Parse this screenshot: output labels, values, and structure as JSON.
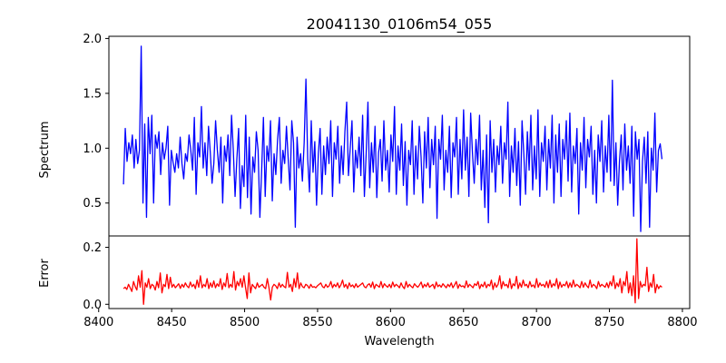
{
  "chart_data": [
    {
      "type": "line",
      "title": "20041130_0106m54_055",
      "xlabel": "",
      "ylabel": "Spectrum",
      "xlim": [
        8407,
        8805
      ],
      "ylim": [
        0.2,
        2.02
      ],
      "yticks": [
        0.5,
        1.0,
        1.5,
        2.0
      ],
      "ytick_labels": [
        "0.5",
        "1.0",
        "1.5",
        "2.0"
      ],
      "color": "#0000ff",
      "x_start": 8417,
      "x_end": 8786,
      "series": [
        {
          "values": [
            0.67,
            1.18,
            0.88,
            1.05,
            0.95,
            1.12,
            0.82,
            1.08,
            0.86,
            0.98,
            1.93,
            0.5,
            1.22,
            0.37,
            1.28,
            0.95,
            1.3,
            0.5,
            1.12,
            1.0,
            1.15,
            0.76,
            1.05,
            0.9,
            1.0,
            1.2,
            0.48,
            0.98,
            0.87,
            0.78,
            0.95,
            0.82,
            1.1,
            0.86,
            0.72,
            0.95,
            0.88,
            1.12,
            0.98,
            0.8,
            1.28,
            0.58,
            1.05,
            0.92,
            1.38,
            0.82,
            1.05,
            0.75,
            1.2,
            0.96,
            0.68,
            0.86,
            1.25,
            0.98,
            0.78,
            1.1,
            0.5,
            1.02,
            0.88,
            1.12,
            0.75,
            1.3,
            0.98,
            0.56,
            0.9,
            1.18,
            0.45,
            0.84,
            0.65,
            1.3,
            0.55,
            1.1,
            0.4,
            0.92,
            0.78,
            1.15,
            0.98,
            0.37,
            0.8,
            1.28,
            0.56,
            1.02,
            0.88,
            1.25,
            0.52,
            0.95,
            0.76,
            1.08,
            1.28,
            0.68,
            0.98,
            0.86,
            1.2,
            0.9,
            0.62,
            1.25,
            1.05,
            0.28,
            1.1,
            0.82,
            0.95,
            0.7,
            1.05,
            1.63,
            0.9,
            0.6,
            1.25,
            0.78,
            1.06,
            0.48,
            0.95,
            1.18,
            0.58,
            1.02,
            0.76,
            1.1,
            0.86,
            1.25,
            0.56,
            1.05,
            0.9,
            1.2,
            0.68,
            1.02,
            0.76,
            1.15,
            1.42,
            0.75,
            1.0,
            1.25,
            0.6,
            0.98,
            0.82,
            1.1,
            0.75,
            1.3,
            0.56,
            0.95,
            1.42,
            0.64,
            1.05,
            0.78,
            1.2,
            0.55,
            0.96,
            1.08,
            0.7,
            1.25,
            0.8,
            0.98,
            0.6,
            1.12,
            0.88,
            1.38,
            0.58,
            1.02,
            0.8,
            1.22,
            0.66,
            1.06,
            0.48,
            0.98,
            0.85,
            1.25,
            0.58,
            1.02,
            0.72,
            1.2,
            0.92,
            0.5,
            1.15,
            0.82,
            1.28,
            0.64,
            1.08,
            0.85,
            1.2,
            0.36,
            1.08,
            0.9,
            1.3,
            0.62,
            0.98,
            0.78,
            1.2,
            0.55,
            1.05,
            0.92,
            1.28,
            0.58,
            1.08,
            0.72,
            1.35,
            0.8,
            1.1,
            0.56,
            1.32,
            0.96,
            0.68,
            1.08,
            0.85,
            1.3,
            0.62,
            0.98,
            0.46,
            1.12,
            0.32,
            1.25,
            0.78,
            1.08,
            0.6,
            1.02,
            0.85,
            1.2,
            0.68,
            1.05,
            0.9,
            1.42,
            0.56,
            1.02,
            0.78,
            1.18,
            0.66,
            1.06,
            0.48,
            1.25,
            0.95,
            0.58,
            1.15,
            0.8,
            1.3,
            0.62,
            1.02,
            0.72,
            1.35,
            0.56,
            1.05,
            0.88,
            1.2,
            0.62,
            1.08,
            0.82,
            1.3,
            0.5,
            1.12,
            0.78,
            1.22,
            0.56,
            1.08,
            0.9,
            1.25,
            0.7,
            1.32,
            0.6,
            1.02,
            0.86,
            1.18,
            0.4,
            1.05,
            0.8,
            1.28,
            0.64,
            1.08,
            0.92,
            1.2,
            0.58,
            0.98,
            0.5,
            1.12,
            0.88,
            1.25,
            0.6,
            1.02,
            0.78,
            1.3,
            0.7,
            1.62,
            0.66,
            1.05,
            0.48,
            0.88,
            1.12,
            0.62,
            1.22,
            0.8,
            1.02,
            0.68,
            1.2,
            0.38,
            1.15,
            0.9,
            1.08,
            0.24,
            0.88,
            1.1,
            0.68,
            1.15,
            0.28,
            1.0,
            0.8,
            1.32,
            0.6,
            0.98,
            1.04,
            0.9
          ]
        }
      ]
    },
    {
      "type": "line",
      "title": "",
      "xlabel": "Wavelength",
      "ylabel": "Error",
      "xlim": [
        8407,
        8805
      ],
      "ylim": [
        -0.015,
        0.24
      ],
      "yticks": [
        0.0,
        0.2
      ],
      "ytick_labels": [
        "0.0",
        "0.2"
      ],
      "xticks": [
        8400,
        8450,
        8500,
        8550,
        8600,
        8650,
        8700,
        8750,
        8800
      ],
      "xtick_labels": [
        "8400",
        "8450",
        "8500",
        "8550",
        "8600",
        "8650",
        "8700",
        "8750",
        "8800"
      ],
      "color": "#ff0000",
      "x_start": 8417,
      "x_end": 8786,
      "series": [
        {
          "values": [
            0.055,
            0.06,
            0.052,
            0.07,
            0.058,
            0.045,
            0.08,
            0.062,
            0.05,
            0.1,
            0.06,
            0.118,
            0.0,
            0.075,
            0.06,
            0.09,
            0.055,
            0.07,
            0.065,
            0.05,
            0.08,
            0.058,
            0.11,
            0.04,
            0.07,
            0.062,
            0.105,
            0.055,
            0.095,
            0.06,
            0.07,
            0.058,
            0.065,
            0.072,
            0.056,
            0.07,
            0.06,
            0.075,
            0.064,
            0.058,
            0.078,
            0.062,
            0.07,
            0.055,
            0.085,
            0.06,
            0.1,
            0.058,
            0.07,
            0.062,
            0.09,
            0.055,
            0.075,
            0.06,
            0.082,
            0.058,
            0.072,
            0.063,
            0.09,
            0.052,
            0.075,
            0.062,
            0.108,
            0.058,
            0.07,
            0.06,
            0.115,
            0.05,
            0.08,
            0.065,
            0.09,
            0.06,
            0.1,
            0.058,
            0.02,
            0.11,
            0.04,
            0.07,
            0.062,
            0.055,
            0.075,
            0.06,
            0.065,
            0.07,
            0.06,
            0.055,
            0.09,
            0.058,
            0.015,
            0.06,
            0.07,
            0.065,
            0.055,
            0.075,
            0.06,
            0.07,
            0.062,
            0.058,
            0.112,
            0.06,
            0.07,
            0.045,
            0.09,
            0.06,
            0.11,
            0.055,
            0.075,
            0.062,
            0.058,
            0.07,
            0.066,
            0.056,
            0.07,
            0.06,
            0.062,
            0.058,
            0.065,
            0.07,
            0.075,
            0.062,
            0.058,
            0.07,
            0.06,
            0.065,
            0.08,
            0.058,
            0.07,
            0.062,
            0.075,
            0.058,
            0.068,
            0.085,
            0.06,
            0.07,
            0.055,
            0.075,
            0.062,
            0.068,
            0.058,
            0.072,
            0.06,
            0.065,
            0.07,
            0.075,
            0.062,
            0.058,
            0.068,
            0.072,
            0.06,
            0.078,
            0.055,
            0.07,
            0.065,
            0.06,
            0.08,
            0.058,
            0.072,
            0.065,
            0.06,
            0.07,
            0.058,
            0.078,
            0.062,
            0.07,
            0.065,
            0.058,
            0.075,
            0.062,
            0.055,
            0.08,
            0.06,
            0.07,
            0.063,
            0.058,
            0.072,
            0.065,
            0.06,
            0.068,
            0.078,
            0.058,
            0.07,
            0.062,
            0.075,
            0.06,
            0.065,
            0.07,
            0.055,
            0.078,
            0.062,
            0.068,
            0.06,
            0.072,
            0.065,
            0.058,
            0.07,
            0.062,
            0.075,
            0.058,
            0.068,
            0.08,
            0.056,
            0.07,
            0.062,
            0.065,
            0.058,
            0.082,
            0.06,
            0.07,
            0.064,
            0.058,
            0.072,
            0.066,
            0.08,
            0.055,
            0.07,
            0.062,
            0.078,
            0.058,
            0.07,
            0.064,
            0.085,
            0.052,
            0.075,
            0.06,
            0.07,
            0.1,
            0.055,
            0.08,
            0.065,
            0.07,
            0.058,
            0.09,
            0.055,
            0.072,
            0.065,
            0.098,
            0.055,
            0.075,
            0.06,
            0.085,
            0.065,
            0.07,
            0.058,
            0.08,
            0.062,
            0.068,
            0.058,
            0.09,
            0.06,
            0.075,
            0.065,
            0.07,
            0.06,
            0.08,
            0.058,
            0.085,
            0.06,
            0.072,
            0.065,
            0.09,
            0.055,
            0.078,
            0.06,
            0.07,
            0.065,
            0.08,
            0.058,
            0.075,
            0.06,
            0.085,
            0.062,
            0.07,
            0.065,
            0.058,
            0.08,
            0.06,
            0.075,
            0.065,
            0.058,
            0.085,
            0.06,
            0.07,
            0.065,
            0.055,
            0.08,
            0.062,
            0.07,
            0.065,
            0.06,
            0.075,
            0.058,
            0.08,
            0.065,
            0.1,
            0.055,
            0.075,
            0.062,
            0.09,
            0.04,
            0.08,
            0.065,
            0.115,
            0.04,
            0.075,
            0.03,
            0.1,
            0.005,
            0.23,
            0.02,
            0.08,
            0.06,
            0.07,
            0.065,
            0.13,
            0.045,
            0.075,
            0.06,
            0.105,
            0.04,
            0.07,
            0.055,
            0.065,
            0.06
          ]
        }
      ]
    }
  ]
}
